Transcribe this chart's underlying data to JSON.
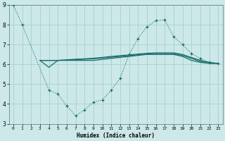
{
  "xlabel": "Humidex (Indice chaleur)",
  "bg_color": "#cce8e8",
  "grid_color": "#aacfcf",
  "line_color": "#1a6e6e",
  "xlim": [
    -0.5,
    23.5
  ],
  "ylim": [
    3,
    9
  ],
  "yticks": [
    3,
    4,
    5,
    6,
    7,
    8,
    9
  ],
  "xticks": [
    0,
    1,
    2,
    3,
    4,
    5,
    6,
    7,
    8,
    9,
    10,
    11,
    12,
    13,
    14,
    15,
    16,
    17,
    18,
    19,
    20,
    21,
    22,
    23
  ],
  "dotted_x": [
    0,
    1,
    4,
    5,
    6,
    7,
    8,
    9,
    10,
    11,
    12,
    13,
    14,
    15,
    16,
    17,
    18,
    19,
    20,
    21,
    22,
    23
  ],
  "dotted_y": [
    9.0,
    8.0,
    4.7,
    4.5,
    3.9,
    3.4,
    3.7,
    4.1,
    4.2,
    4.7,
    5.3,
    6.5,
    7.3,
    7.9,
    8.2,
    8.25,
    7.4,
    7.0,
    6.55,
    6.3,
    6.1,
    6.05
  ],
  "flat_lines": [
    {
      "x": [
        3,
        4,
        5,
        6,
        7,
        8,
        9,
        10,
        11,
        12,
        13,
        14,
        15,
        16,
        17,
        18,
        19,
        20,
        21,
        22,
        23
      ],
      "y": [
        6.2,
        5.85,
        6.2,
        6.2,
        6.2,
        6.2,
        6.2,
        6.25,
        6.3,
        6.35,
        6.4,
        6.45,
        6.5,
        6.5,
        6.5,
        6.5,
        6.4,
        6.2,
        6.1,
        6.05,
        6.05
      ]
    },
    {
      "x": [
        3,
        5,
        6,
        7,
        8,
        9,
        10,
        11,
        12,
        13,
        14,
        15,
        16,
        17,
        18,
        19,
        20,
        21,
        22,
        23
      ],
      "y": [
        6.2,
        6.2,
        6.22,
        6.24,
        6.26,
        6.28,
        6.32,
        6.36,
        6.4,
        6.44,
        6.48,
        6.52,
        6.54,
        6.54,
        6.54,
        6.45,
        6.3,
        6.15,
        6.05,
        6.05
      ]
    },
    {
      "x": [
        3,
        5,
        6,
        7,
        8,
        9,
        10,
        11,
        12,
        13,
        14,
        15,
        16,
        17,
        18,
        19,
        20,
        21,
        22,
        23
      ],
      "y": [
        6.2,
        6.2,
        6.23,
        6.26,
        6.28,
        6.31,
        6.35,
        6.4,
        6.44,
        6.48,
        6.52,
        6.56,
        6.58,
        6.58,
        6.58,
        6.5,
        6.35,
        6.2,
        6.1,
        6.05
      ]
    }
  ]
}
